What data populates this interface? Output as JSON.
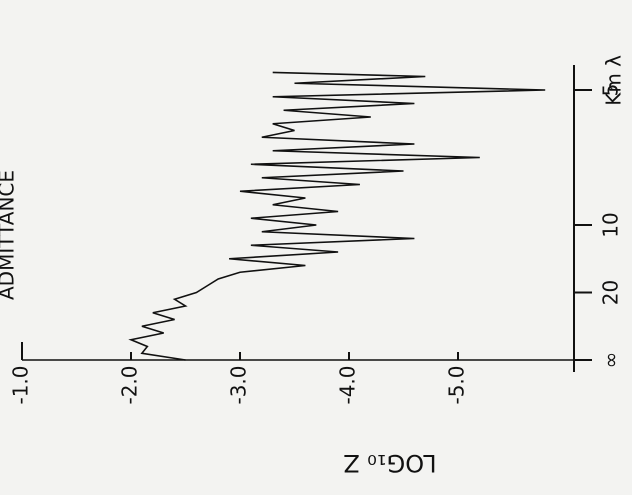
{
  "chart_data": {
    "type": "line",
    "title": "ADMITTANCE",
    "y_label": "LOG₁₀ Z",
    "x_label": "Km λ",
    "x": [
      0,
      0.005,
      0.01,
      0.015,
      0.02,
      0.025,
      0.03,
      0.035,
      0.04,
      0.045,
      0.05,
      0.055,
      0.06,
      0.065,
      0.07,
      0.075,
      0.08,
      0.085,
      0.09,
      0.095,
      0.1,
      0.105,
      0.11,
      0.115,
      0.12,
      0.125,
      0.13,
      0.135,
      0.14,
      0.145,
      0.15,
      0.155,
      0.16,
      0.165,
      0.17,
      0.175,
      0.18,
      0.185,
      0.19,
      0.195,
      0.2,
      0.205,
      0.21,
      0.213
    ],
    "values": [
      -2.5,
      -2.1,
      -2.15,
      -2.0,
      -2.3,
      -2.1,
      -2.4,
      -2.2,
      -2.5,
      -2.4,
      -2.6,
      -2.7,
      -2.8,
      -3.0,
      -3.6,
      -2.9,
      -3.9,
      -3.1,
      -4.6,
      -3.2,
      -3.7,
      -3.1,
      -3.9,
      -3.3,
      -3.6,
      -3.0,
      -4.1,
      -3.2,
      -4.5,
      -3.1,
      -5.2,
      -3.3,
      -4.6,
      -3.2,
      -3.5,
      -3.3,
      -4.2,
      -3.4,
      -4.6,
      -3.3,
      -5.8,
      -3.5,
      -4.7,
      -3.3
    ],
    "color": "#111111",
    "xlim": [
      0,
      0.22
    ],
    "xticks": [
      {
        "value": 0,
        "label": "∞"
      },
      {
        "value": 0.05,
        "label": "20"
      },
      {
        "value": 0.1,
        "label": "10"
      },
      {
        "value": 0.2,
        "label": "5"
      }
    ],
    "ylim": [
      -1,
      -6
    ],
    "yticks": [
      {
        "value": -1,
        "label": "-1.0"
      },
      {
        "value": -2,
        "label": "-2.0"
      },
      {
        "value": -3,
        "label": "-3.0"
      },
      {
        "value": -4,
        "label": "-4.0"
      },
      {
        "value": -5,
        "label": "-5.0"
      }
    ]
  }
}
